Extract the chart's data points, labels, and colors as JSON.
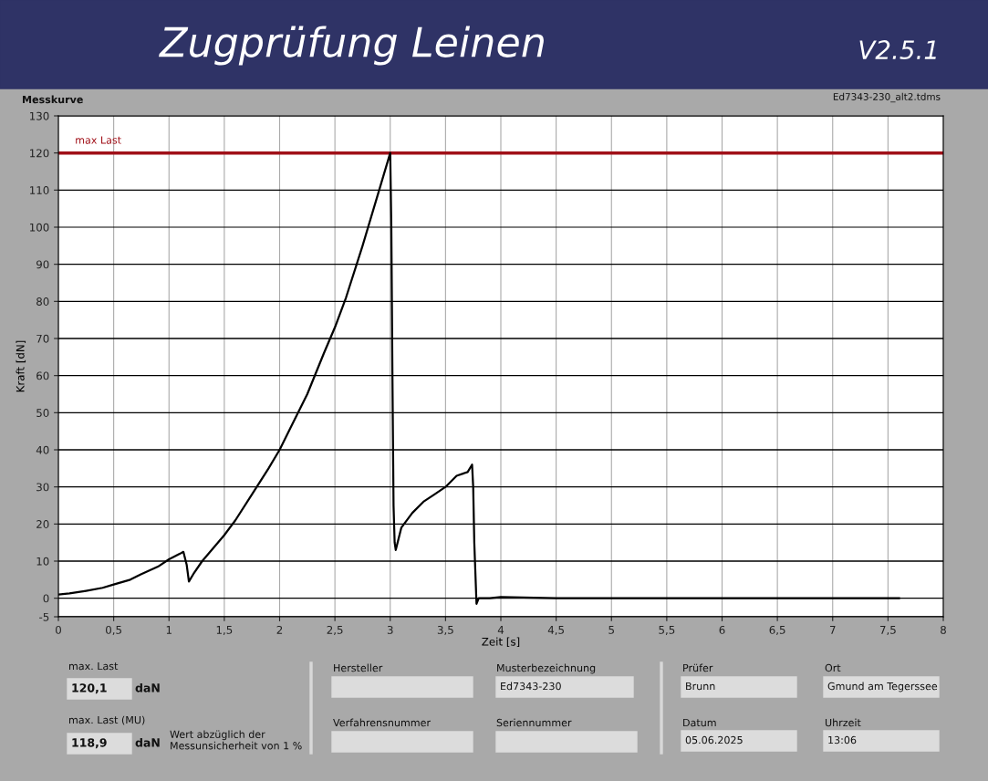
{
  "chart_data": {
    "type": "line",
    "title": "Zugprüfung Leinen",
    "xlabel": "Zeit [s]",
    "ylabel": "Kraft [dN]",
    "x": [
      0,
      0.1,
      0.25,
      0.4,
      0.5,
      0.65,
      0.75,
      0.9,
      1.0,
      1.1,
      1.13,
      1.16,
      1.18,
      1.22,
      1.3,
      1.4,
      1.5,
      1.6,
      1.75,
      1.9,
      2.0,
      2.1,
      2.25,
      2.4,
      2.5,
      2.6,
      2.75,
      2.9,
      3.0,
      3.01,
      3.02,
      3.03,
      3.04,
      3.05,
      3.1,
      3.2,
      3.3,
      3.4,
      3.5,
      3.6,
      3.7,
      3.74,
      3.75,
      3.76,
      3.78,
      3.8,
      3.9,
      4.0,
      4.5,
      5.0,
      5.5,
      6.0,
      6.5,
      7.0,
      7.5,
      7.6
    ],
    "series": [
      {
        "color": "#000000",
        "values": [
          1,
          1.3,
          2,
          2.8,
          3.7,
          5,
          6.5,
          8.5,
          10.5,
          12,
          12.5,
          9,
          4.5,
          6.5,
          10,
          13.5,
          17,
          21,
          28,
          35,
          40,
          46,
          55,
          66,
          73,
          81,
          95,
          110,
          120,
          100,
          60,
          25,
          15,
          13,
          19,
          23,
          26,
          28,
          30,
          33,
          34,
          36,
          30,
          15,
          -1.5,
          0,
          0,
          0.3,
          0,
          0,
          0,
          0,
          0,
          0,
          0,
          0
        ]
      }
    ],
    "xlim": [
      0,
      8
    ],
    "ylim": [
      -5,
      130
    ],
    "xticks": [
      0,
      {
        "value": 0.5,
        "label": "0,5"
      },
      1,
      {
        "value": 1.5,
        "label": "1,5"
      },
      2,
      {
        "value": 2.5,
        "label": "2,5"
      },
      3,
      {
        "value": 3.5,
        "label": "3,5"
      },
      4,
      {
        "value": 4.5,
        "label": "4,5"
      },
      5,
      {
        "value": 5.5,
        "label": "5,5"
      },
      6,
      {
        "value": 6.5,
        "label": "6,5"
      },
      7,
      {
        "value": 7.5,
        "label": "7,5"
      },
      8
    ],
    "yticks": [
      -5,
      0,
      10,
      20,
      30,
      40,
      50,
      60,
      70,
      80,
      90,
      100,
      110,
      120,
      130
    ],
    "grid": true,
    "marker": "none",
    "line_style": "solid",
    "ref_lines": [
      {
        "axis": "y",
        "value": 120,
        "label": "max Last",
        "color": "#a01018"
      }
    ],
    "annotations": [
      "Messkurve",
      "Ed7343-230_alt2.tdms",
      "V2.5.1",
      "max. Last",
      "120,1",
      "daN",
      "max. Last (MU)",
      "118,9",
      "daN",
      "Wert abzüglich der\nMessunsicherheit von 1 %",
      "Hersteller",
      "Verfahrensnummer",
      "Musterbezeichnung",
      "Ed7343-230",
      "Seriennummer",
      "Prüfer",
      "Brunn",
      "Datum",
      "05.06.2025",
      "Ort",
      "Gmund am Tegerssee",
      "Uhrzeit",
      "13:06"
    ]
  }
}
